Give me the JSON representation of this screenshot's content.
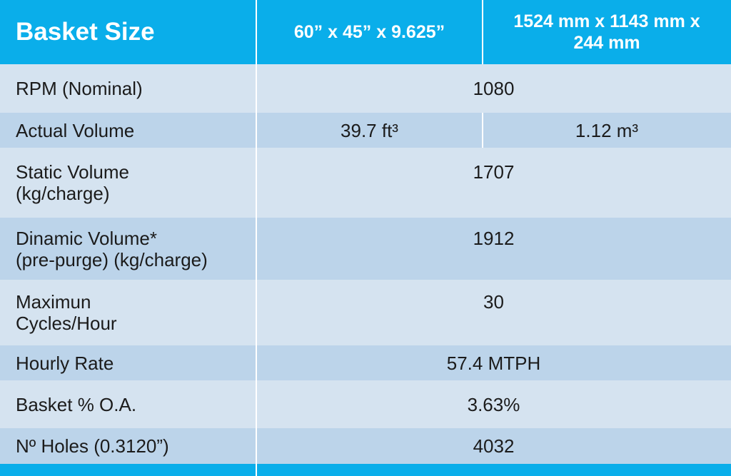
{
  "table": {
    "header": [
      "Basket Size",
      "60” x 45” x 9.625”",
      "1524 mm x 1143 mm x 244 mm"
    ],
    "rows": [
      {
        "label": [
          "RPM (Nominal)"
        ],
        "values": [
          "1080"
        ]
      },
      {
        "label": [
          "Actual Volume"
        ],
        "values": [
          "39.7 ft³",
          "1.12 m³"
        ]
      },
      {
        "label": [
          "Static Volume",
          "(kg/charge)"
        ],
        "values": [
          "1707"
        ]
      },
      {
        "label": [
          "Dinamic Volume*",
          "(pre-purge) (kg/charge)"
        ],
        "values": [
          "1912"
        ]
      },
      {
        "label": [
          "Maximun",
          "Cycles/Hour"
        ],
        "values": [
          "30"
        ]
      },
      {
        "label": [
          "Hourly Rate"
        ],
        "values": [
          "57.4 MTPH"
        ]
      },
      {
        "label": [
          "Basket % O.A."
        ],
        "values": [
          "3.63%"
        ]
      },
      {
        "label": [
          "Nº Holes (0.3120”)"
        ],
        "values": [
          "4032"
        ]
      }
    ]
  }
}
